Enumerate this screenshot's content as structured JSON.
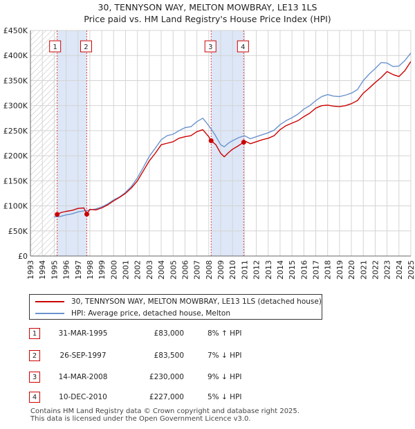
{
  "title": {
    "line1": "30, TENNYSON WAY, MELTON MOWBRAY, LE13 1LS",
    "line2": "Price paid vs. HM Land Registry's House Price Index (HPI)"
  },
  "colors": {
    "property": "#cc0000",
    "hpi": "#6a93cf",
    "shade": "#dde7f7",
    "grid": "#d4d4d4",
    "marker_border": "#cc0000"
  },
  "legend": {
    "property_label": "30, TENNYSON WAY, MELTON MOWBRAY, LE13 1LS (detached house)",
    "hpi_label": "HPI: Average price, detached house, Melton"
  },
  "sales": [
    {
      "id": "1",
      "date": "31-MAR-1995",
      "price": "£83,000",
      "hpi_change": "8% ↑ HPI"
    },
    {
      "id": "2",
      "date": "26-SEP-1997",
      "price": "£83,500",
      "hpi_change": "7% ↓ HPI"
    },
    {
      "id": "3",
      "date": "14-MAR-2008",
      "price": "£230,000",
      "hpi_change": "9% ↓ HPI"
    },
    {
      "id": "4",
      "date": "10-DEC-2010",
      "price": "£227,000",
      "hpi_change": "5% ↓ HPI"
    }
  ],
  "footer": {
    "line1": "Contains HM Land Registry data © Crown copyright and database right 2025.",
    "line2": "This data is licensed under the Open Government Licence v3.0."
  },
  "chart_data": {
    "type": "line",
    "title": "30, TENNYSON WAY, MELTON MOWBRAY, LE13 1LS — Price paid vs. HM Land Registry's House Price Index (HPI)",
    "xlabel": "",
    "ylabel": "",
    "xlim": [
      1993,
      2025
    ],
    "ylim": [
      0,
      450000
    ],
    "y_ticks": [
      {
        "value": 0,
        "label": "£0"
      },
      {
        "value": 50000,
        "label": "£50K"
      },
      {
        "value": 100000,
        "label": "£100K"
      },
      {
        "value": 150000,
        "label": "£150K"
      },
      {
        "value": 200000,
        "label": "£200K"
      },
      {
        "value": 250000,
        "label": "£250K"
      },
      {
        "value": 300000,
        "label": "£300K"
      },
      {
        "value": 350000,
        "label": "£350K"
      },
      {
        "value": 400000,
        "label": "£400K"
      },
      {
        "value": 450000,
        "label": "£450K"
      }
    ],
    "x_ticks": [
      "1993",
      "1994",
      "1995",
      "1996",
      "1997",
      "1998",
      "1999",
      "2000",
      "2001",
      "2002",
      "2003",
      "2004",
      "2005",
      "2006",
      "2007",
      "2008",
      "2009",
      "2010",
      "2011",
      "2012",
      "2013",
      "2014",
      "2015",
      "2016",
      "2017",
      "2018",
      "2019",
      "2020",
      "2021",
      "2022",
      "2023",
      "2024",
      "2025"
    ],
    "grid": true,
    "hatched_region": [
      1993,
      1995.25
    ],
    "shaded_regions": [
      [
        1995.25,
        1997.74
      ],
      [
        2008.2,
        2010.94
      ]
    ],
    "sale_markers": [
      {
        "label": "1",
        "x": 1995.25,
        "y": 83000
      },
      {
        "label": "2",
        "x": 1997.74,
        "y": 83500
      },
      {
        "label": "3",
        "x": 2008.2,
        "y": 230000
      },
      {
        "label": "4",
        "x": 2010.94,
        "y": 227000
      }
    ],
    "series": [
      {
        "name": "30, TENNYSON WAY, MELTON MOWBRAY, LE13 1LS (detached house)",
        "color": "#cc0000",
        "x": [
          1995.25,
          1995.6,
          1996,
          1996.5,
          1997,
          1997.5,
          1997.74,
          1998,
          1998.5,
          1999,
          1999.5,
          2000,
          2000.5,
          2001,
          2001.5,
          2002,
          2002.5,
          2003,
          2003.5,
          2004,
          2004.5,
          2005,
          2005.5,
          2006,
          2006.5,
          2007,
          2007.5,
          2008,
          2008.2,
          2008.6,
          2009,
          2009.3,
          2009.7,
          2010,
          2010.5,
          2010.94,
          2011,
          2011.5,
          2012,
          2012.5,
          2013,
          2013.5,
          2014,
          2014.5,
          2015,
          2015.5,
          2016,
          2016.5,
          2017,
          2017.5,
          2018,
          2018.5,
          2019,
          2019.5,
          2020,
          2020.5,
          2021,
          2021.5,
          2022,
          2022.5,
          2023,
          2023.5,
          2024,
          2024.5,
          2025
        ],
        "y": [
          83000,
          87000,
          89000,
          91000,
          95000,
          96000,
          83500,
          93000,
          92000,
          96000,
          102000,
          110000,
          117000,
          125000,
          136000,
          150000,
          170000,
          190000,
          205000,
          222000,
          225000,
          228000,
          235000,
          238000,
          240000,
          248000,
          252000,
          238000,
          230000,
          222000,
          205000,
          198000,
          207000,
          213000,
          220000,
          227000,
          230000,
          224000,
          228000,
          232000,
          235000,
          240000,
          252000,
          260000,
          265000,
          270000,
          278000,
          285000,
          295000,
          300000,
          301000,
          299000,
          298000,
          300000,
          304000,
          310000,
          325000,
          335000,
          346000,
          356000,
          368000,
          362000,
          358000,
          370000,
          388000
        ]
      },
      {
        "name": "HPI: Average price, detached house, Melton",
        "color": "#6a93cf",
        "x": [
          1995,
          1995.5,
          1996,
          1996.5,
          1997,
          1997.5,
          1998,
          1998.5,
          1999,
          1999.5,
          2000,
          2000.5,
          2001,
          2001.5,
          2002,
          2002.5,
          2003,
          2003.5,
          2004,
          2004.5,
          2005,
          2005.5,
          2006,
          2006.5,
          2007,
          2007.5,
          2008,
          2008.5,
          2009,
          2009.3,
          2009.7,
          2010,
          2010.5,
          2011,
          2011.5,
          2012,
          2012.5,
          2013,
          2013.5,
          2014,
          2014.5,
          2015,
          2015.5,
          2016,
          2016.5,
          2017,
          2017.5,
          2018,
          2018.5,
          2019,
          2019.5,
          2020,
          2020.5,
          2021,
          2021.5,
          2022,
          2022.5,
          2023,
          2023.5,
          2024,
          2024.5,
          2025
        ],
        "y": [
          78000,
          79000,
          82000,
          84000,
          88000,
          90000,
          92000,
          94000,
          98000,
          104000,
          112000,
          118000,
          127000,
          139000,
          156000,
          177000,
          199000,
          215000,
          232000,
          240000,
          243000,
          250000,
          256000,
          258000,
          268000,
          275000,
          260000,
          243000,
          222000,
          218000,
          226000,
          230000,
          236000,
          240000,
          234000,
          238000,
          242000,
          246000,
          251000,
          262000,
          270000,
          276000,
          283000,
          293000,
          300000,
          310000,
          318000,
          322000,
          319000,
          318000,
          321000,
          325000,
          332000,
          350000,
          363000,
          374000,
          386000,
          385000,
          378000,
          379000,
          390000,
          405000
        ]
      }
    ]
  }
}
